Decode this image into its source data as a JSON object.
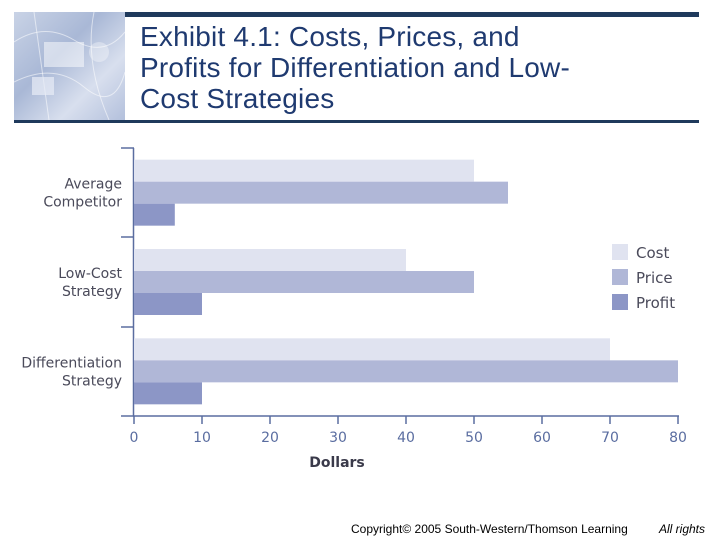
{
  "header": {
    "title_lines": [
      "Exhibit 4.1: Costs, Prices, and",
      "Profits for Differentiation and Low-",
      "Cost Strategies"
    ]
  },
  "chart_data": {
    "type": "bar",
    "orientation": "horizontal",
    "categories": [
      [
        "Average",
        "Competitor"
      ],
      [
        "Low-Cost",
        "Strategy"
      ],
      [
        "Differentiation",
        "Strategy"
      ]
    ],
    "series": [
      {
        "name": "Cost",
        "color": "#e0e3f0",
        "values": [
          50,
          40,
          70
        ]
      },
      {
        "name": "Price",
        "color": "#b0b7d7",
        "values": [
          55,
          50,
          80
        ]
      },
      {
        "name": "Profit",
        "color": "#8c96c6",
        "values": [
          6,
          10,
          10
        ]
      }
    ],
    "xlabel": "Dollars",
    "xlim": [
      0,
      80
    ],
    "xticks": [
      0,
      10,
      20,
      30,
      40,
      50,
      60,
      70,
      80
    ],
    "legend_position": "right",
    "axis_color": "#5a6da0"
  },
  "footer": {
    "copyright": "Copyright© 2005 South-Western/Thomson Learning",
    "rights": "All rights"
  }
}
